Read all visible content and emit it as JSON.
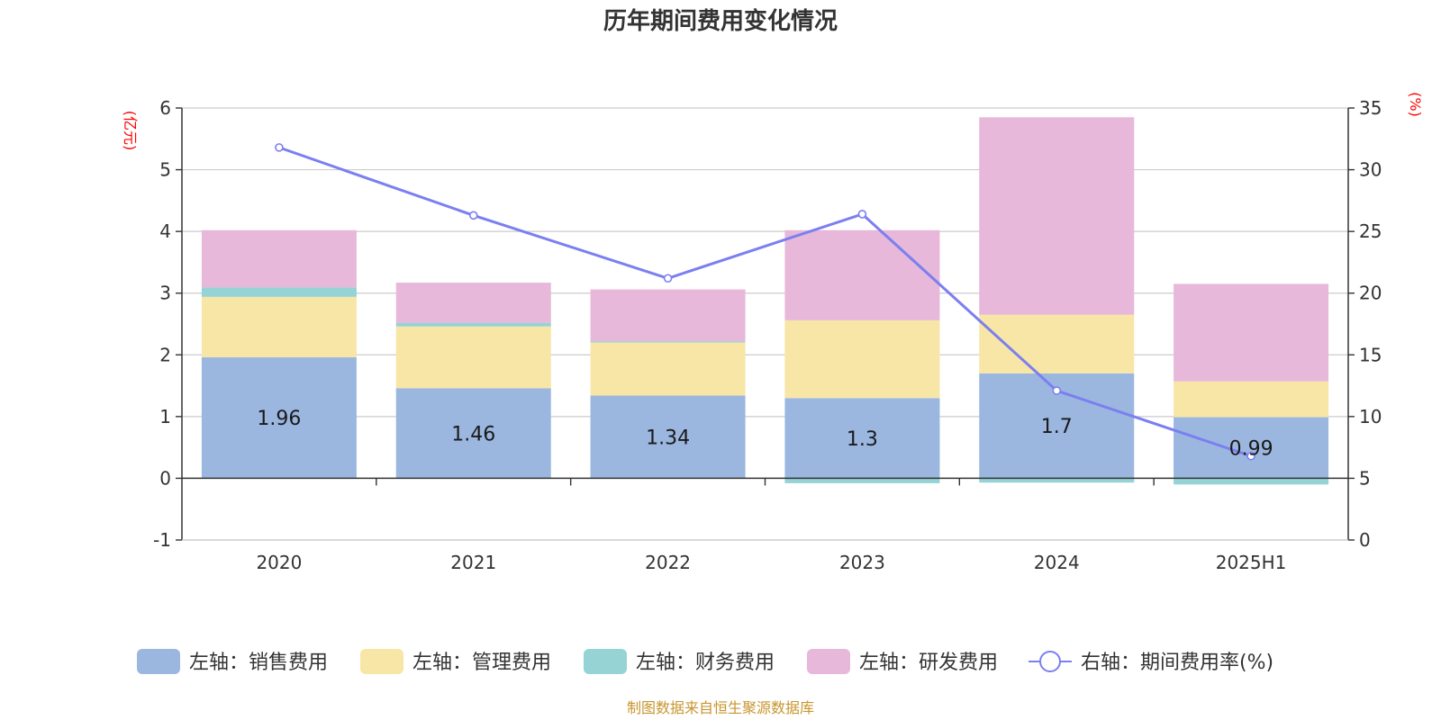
{
  "title": "历年期间费用变化情况",
  "source": "制图数据来自恒生聚源数据库",
  "left_unit": "(亿元)",
  "right_unit": "(%)",
  "colors": {
    "sales": "#9bb7e0",
    "admin": "#f8e6a6",
    "finance": "#95d3d4",
    "rd": "#e7b8d9",
    "line": "#7b7ff0",
    "grid": "#cccccc",
    "axis": "#333333",
    "unit": "#ff0000"
  },
  "chart_data": {
    "type": "bar",
    "stacked": true,
    "title": "历年期间费用变化情况",
    "categories": [
      "2020",
      "2021",
      "2022",
      "2023",
      "2024",
      "2025H1"
    ],
    "y_left": {
      "label": "(亿元)",
      "ylim": [
        -1,
        6
      ],
      "ticks": [
        "-1",
        "0",
        "1",
        "2",
        "3",
        "4",
        "5",
        "6"
      ]
    },
    "y_right": {
      "label": "(%)",
      "ylim": [
        0,
        35
      ],
      "ticks": [
        "0",
        "5",
        "10",
        "15",
        "20",
        "25",
        "30",
        "35"
      ]
    },
    "grid": true,
    "legend_position": "bottom",
    "series": [
      {
        "name": "左轴：销售费用",
        "axis": "left",
        "kind": "bar",
        "color": "#9bb7e0",
        "values": [
          1.96,
          1.46,
          1.34,
          1.3,
          1.7,
          0.99
        ],
        "labels": [
          "1.96",
          "1.46",
          "1.34",
          "1.3",
          "1.7",
          "0.99"
        ]
      },
      {
        "name": "左轴：管理费用",
        "axis": "left",
        "kind": "bar",
        "color": "#f8e6a6",
        "values": [
          0.98,
          1.0,
          0.86,
          1.26,
          0.95,
          0.58
        ]
      },
      {
        "name": "左轴：财务费用",
        "axis": "left",
        "kind": "bar",
        "color": "#95d3d4",
        "values": [
          0.15,
          0.06,
          0.02,
          -0.08,
          -0.07,
          -0.1
        ]
      },
      {
        "name": "左轴：研发费用",
        "axis": "left",
        "kind": "bar",
        "color": "#e7b8d9",
        "values": [
          0.93,
          0.65,
          0.84,
          1.46,
          3.2,
          1.58
        ]
      },
      {
        "name": "右轴：期间费用率(%)",
        "axis": "right",
        "kind": "line",
        "color": "#7b7ff0",
        "values": [
          31.8,
          26.3,
          21.2,
          26.4,
          12.1,
          6.8
        ]
      }
    ]
  }
}
